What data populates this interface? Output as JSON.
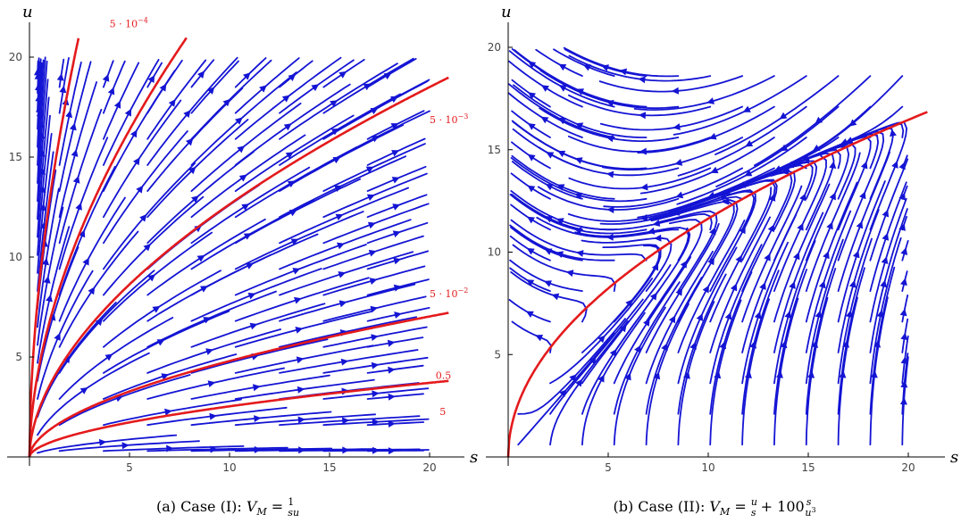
{
  "chart_data": [
    {
      "id": "a",
      "type": "streamplot",
      "caption": "(a) Case (I): V_M = 1/(su)",
      "caption_parts": {
        "prefix": "(a) Case (I): ",
        "lhs": "V",
        "lhs_sub": "M",
        "eq": " = ",
        "frac_num": "1",
        "frac_den": "su"
      },
      "xlabel": "s",
      "ylabel": "u",
      "xlim": [
        0,
        21
      ],
      "ylim": [
        0,
        21
      ],
      "xticks": [
        5,
        10,
        15,
        20
      ],
      "yticks": [
        5,
        10,
        15,
        20
      ],
      "xtick_labels": [
        "5",
        "10",
        "15",
        "20"
      ],
      "ytick_labels": [
        "5",
        "10",
        "15",
        "20"
      ],
      "grid": false,
      "stream_color": "#1414d4",
      "curve_color": "#e41a1c",
      "curves": [
        {
          "name": "5·10⁻⁴",
          "label_parts": [
            "5 · 10",
            "−4"
          ],
          "param": 0.0005,
          "s_end": 3.9,
          "label_at": [
            4.0,
            21.5
          ]
        },
        {
          "name": "5·10⁻³",
          "label_parts": [
            "5 · 10",
            "−3"
          ],
          "param": 0.005,
          "s_end": 21,
          "label_at": [
            20.0,
            16.7
          ]
        },
        {
          "name": "5·10⁻²",
          "label_parts": [
            "5 · 10",
            "−2"
          ],
          "param": 0.05,
          "s_end": 21,
          "label_at": [
            20.0,
            8.0
          ]
        },
        {
          "name": "0.5",
          "label_parts": [
            "0.5",
            ""
          ],
          "param": 0.5,
          "s_end": 21,
          "label_at": [
            20.3,
            3.9
          ]
        },
        {
          "name": "5",
          "label_parts": [
            "5",
            ""
          ],
          "param": 5,
          "s_end": 21,
          "label_at": [
            20.5,
            2.1
          ]
        }
      ]
    },
    {
      "id": "b",
      "type": "streamplot",
      "caption": "(b) Case (II): V_M = u/s + 100 s/u^3",
      "caption_parts": {
        "prefix": "(b) Case (II): ",
        "lhs": "V",
        "lhs_sub": "M",
        "eq": " = ",
        "frac1_num": "u",
        "frac1_den": "s",
        "plus": " + 100",
        "frac2_num": "s",
        "frac2_den": "u",
        "frac2_den_sup": "3"
      },
      "xlabel": "s",
      "ylabel": "u",
      "xlim": [
        0,
        21
      ],
      "ylim": [
        0,
        21
      ],
      "xticks": [
        5,
        10,
        15,
        20
      ],
      "yticks": [
        5,
        10,
        15,
        20
      ],
      "xtick_labels": [
        "5",
        "10",
        "15",
        "20"
      ],
      "ytick_labels": [
        "5",
        "10",
        "15",
        "20"
      ],
      "grid": false,
      "stream_color": "#1414d4",
      "curve_color": "#e41a1c",
      "curves": [
        {
          "name": "",
          "param": 0,
          "s_end": 21,
          "label_at": null
        }
      ]
    }
  ]
}
